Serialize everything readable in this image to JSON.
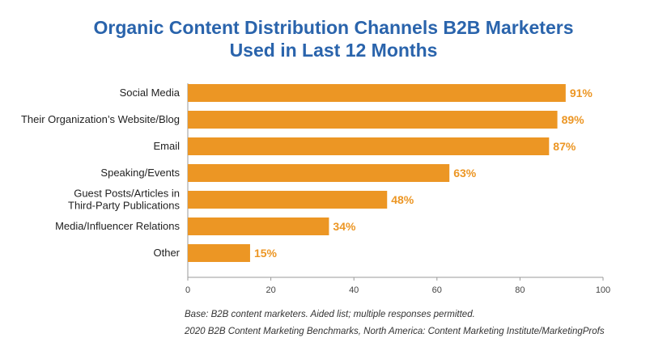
{
  "chart_data": {
    "type": "bar",
    "orientation": "horizontal",
    "title_lines": [
      "Organic Content Distribution Channels B2B Marketers",
      "Used in Last 12 Months"
    ],
    "categories": [
      [
        "Social Media"
      ],
      [
        "Their Organization’s Website/Blog"
      ],
      [
        "Email"
      ],
      [
        "Speaking/Events"
      ],
      [
        "Guest Posts/Articles in",
        "Third-Party Publications"
      ],
      [
        "Media/Influencer Relations"
      ],
      [
        "Other"
      ]
    ],
    "values": [
      91,
      89,
      87,
      63,
      48,
      34,
      15
    ],
    "value_labels": [
      "91%",
      "89%",
      "87%",
      "63%",
      "48%",
      "34%",
      "15%"
    ],
    "xlim": [
      0,
      100
    ],
    "xticks": [
      0,
      20,
      40,
      60,
      80,
      100
    ],
    "grid": false,
    "bar_color": "#ec9624",
    "label_color": "#ec9624",
    "title_color": "#2a64ac"
  },
  "footnotes": {
    "base": "Base: B2B content marketers. Aided list; multiple responses permitted.",
    "source": "2020 B2B Content Marketing Benchmarks, North America: Content Marketing Institute/MarketingProfs"
  }
}
